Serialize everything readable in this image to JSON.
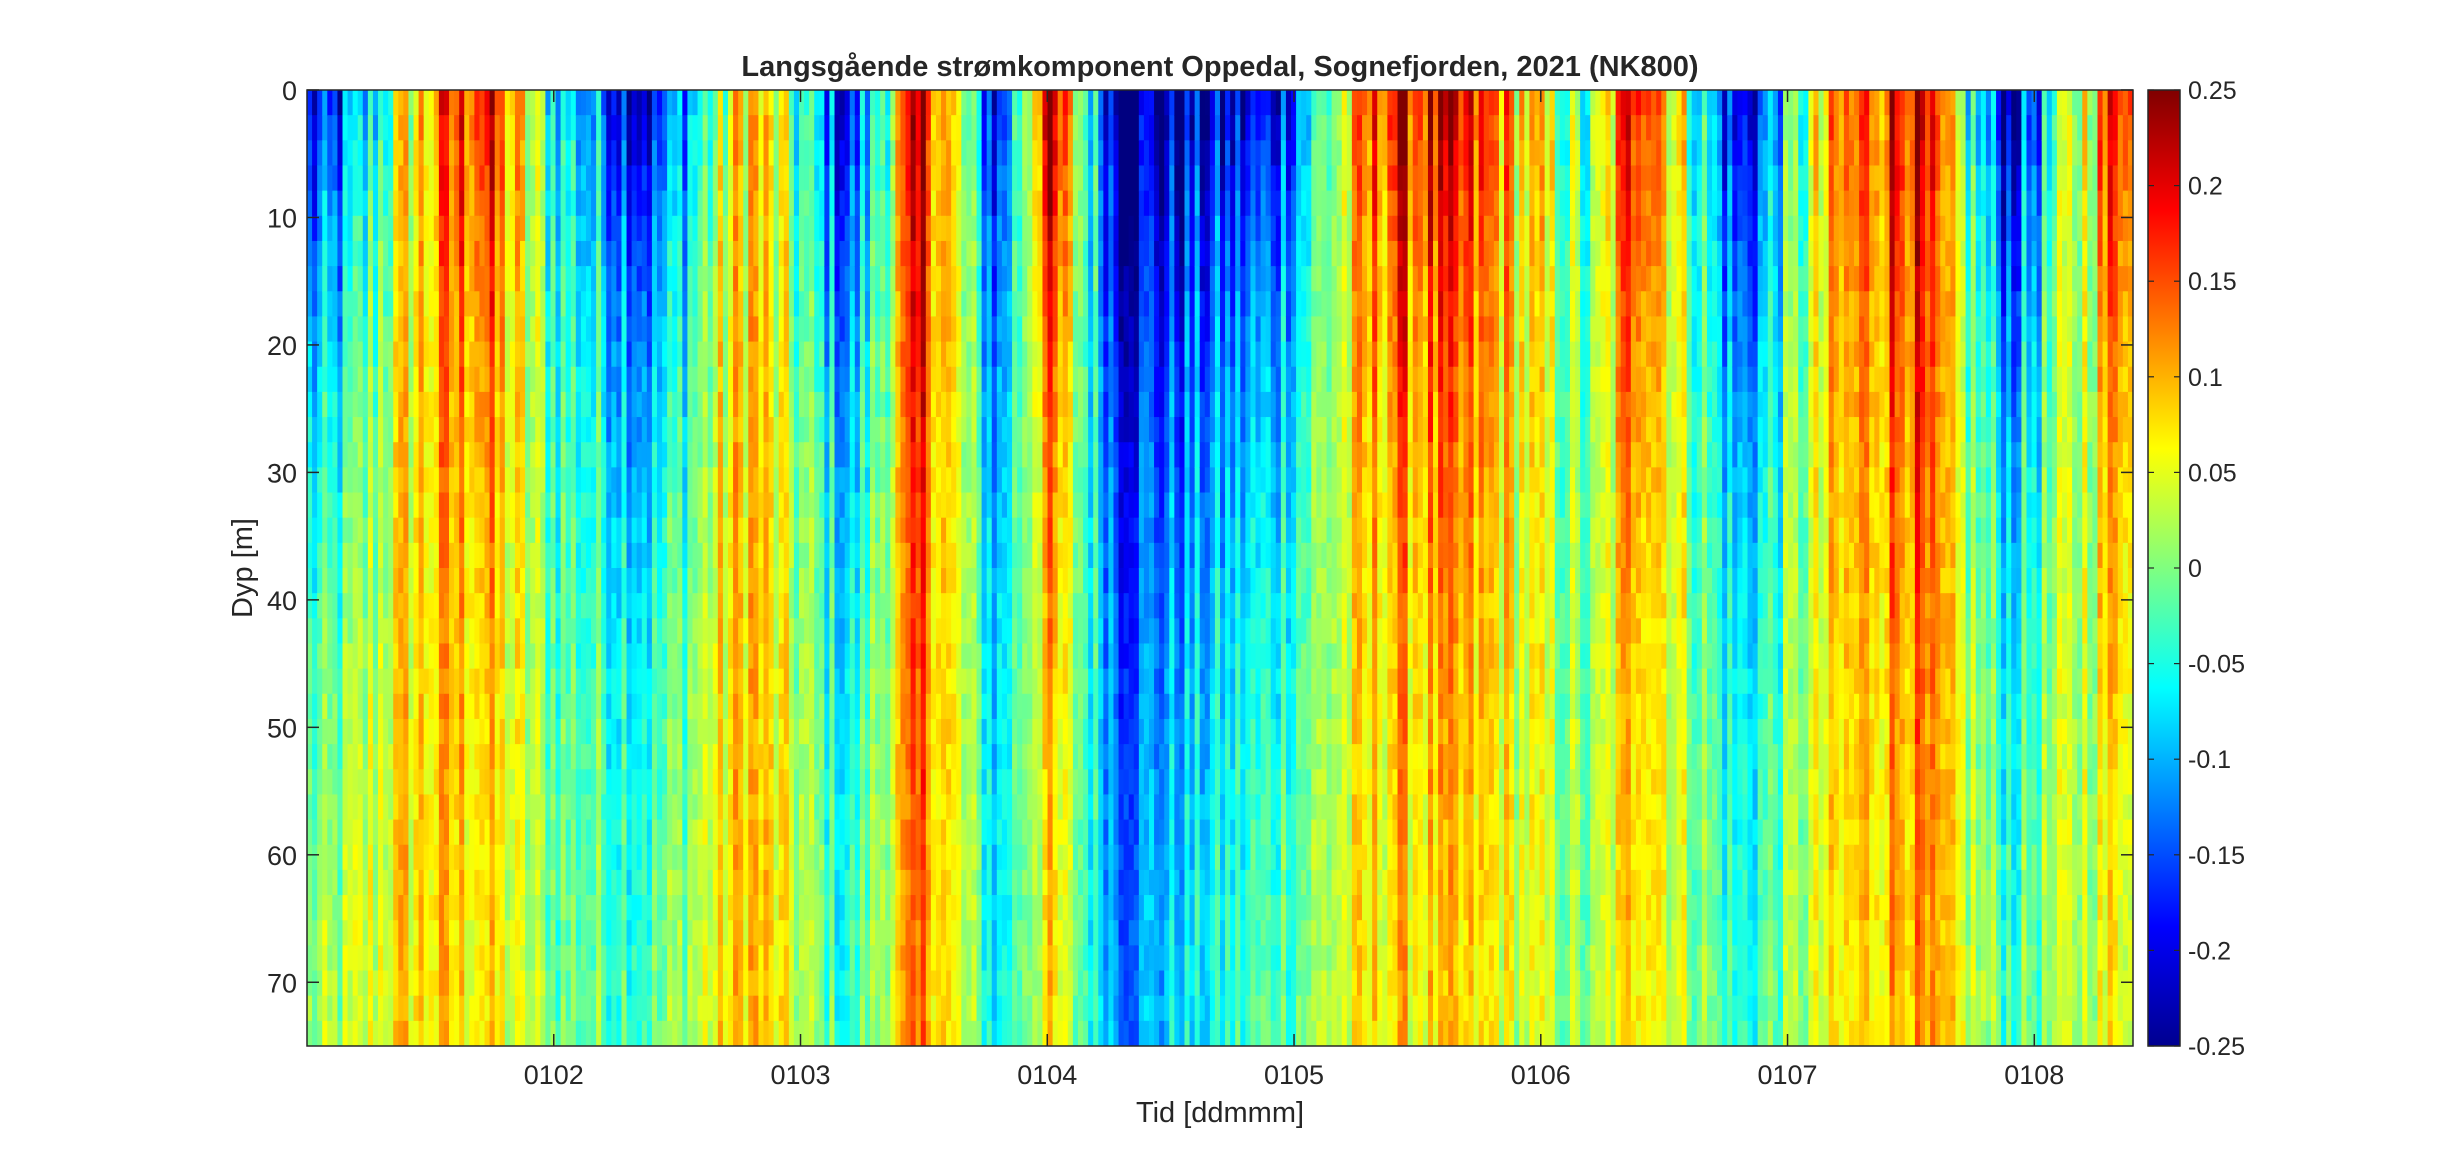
{
  "chart_data": {
    "type": "heatmap",
    "title": "Langsgående strømkomponent Oppedal, Sognefjorden, 2021 (NK800)",
    "xlabel": "Tid [ddmmm]",
    "ylabel": "Dyp [m]",
    "x_ticks": [
      "0102",
      "0103",
      "0104",
      "0105",
      "0106",
      "0107",
      "0108"
    ],
    "y_ticks": [
      0,
      10,
      20,
      30,
      40,
      50,
      60,
      70
    ],
    "ylim": [
      0,
      75
    ],
    "y_reversed": true,
    "colorbar": {
      "colormap": "jet",
      "clim": [
        -0.25,
        0.25
      ],
      "tick_values": [
        0.25,
        0.2,
        0.15,
        0.1,
        0.05,
        0,
        -0.05,
        -0.1,
        -0.15,
        -0.2,
        -0.25
      ],
      "tick_labels": [
        "0.25",
        "0.2",
        "0.15",
        "0.1",
        "0.05",
        "0",
        "-0.05",
        "-0.1",
        "-0.15",
        "-0.2",
        "-0.25"
      ]
    },
    "colormap_stops": [
      "#00008f",
      "#0000ff",
      "#00ffff",
      "#ffff00",
      "#ff0000",
      "#800000"
    ],
    "x_day_range": [
      0.0,
      7.4
    ],
    "tick_day_positions": [
      1,
      2,
      3,
      4,
      5,
      6,
      7
    ],
    "approx_surface_pattern": [
      {
        "day": 0.1,
        "surface": -0.2,
        "deep": 0.03
      },
      {
        "day": 0.4,
        "surface": 0.05,
        "deep": 0.08
      },
      {
        "day": 0.7,
        "surface": 0.2,
        "deep": 0.06
      },
      {
        "day": 1.0,
        "surface": -0.05,
        "deep": 0.0
      },
      {
        "day": 1.4,
        "surface": -0.2,
        "deep": 0.0
      },
      {
        "day": 1.8,
        "surface": 0.1,
        "deep": 0.1
      },
      {
        "day": 2.2,
        "surface": -0.2,
        "deep": -0.03
      },
      {
        "day": 2.5,
        "surface": 0.22,
        "deep": 0.12
      },
      {
        "day": 2.8,
        "surface": -0.2,
        "deep": -0.05
      },
      {
        "day": 3.0,
        "surface": 0.22,
        "deep": 0.05
      },
      {
        "day": 3.3,
        "surface": -0.24,
        "deep": -0.1
      },
      {
        "day": 3.9,
        "surface": -0.2,
        "deep": 0.0
      },
      {
        "day": 4.4,
        "surface": 0.2,
        "deep": 0.06
      },
      {
        "day": 4.8,
        "surface": 0.15,
        "deep": 0.05
      },
      {
        "day": 5.2,
        "surface": -0.05,
        "deep": 0.0
      },
      {
        "day": 5.4,
        "surface": 0.24,
        "deep": 0.08
      },
      {
        "day": 5.8,
        "surface": -0.22,
        "deep": -0.03
      },
      {
        "day": 6.2,
        "surface": 0.1,
        "deep": 0.05
      },
      {
        "day": 6.5,
        "surface": 0.22,
        "deep": 0.1
      },
      {
        "day": 6.9,
        "surface": -0.22,
        "deep": 0.0
      },
      {
        "day": 7.4,
        "surface": 0.24,
        "deep": 0.05
      }
    ]
  }
}
